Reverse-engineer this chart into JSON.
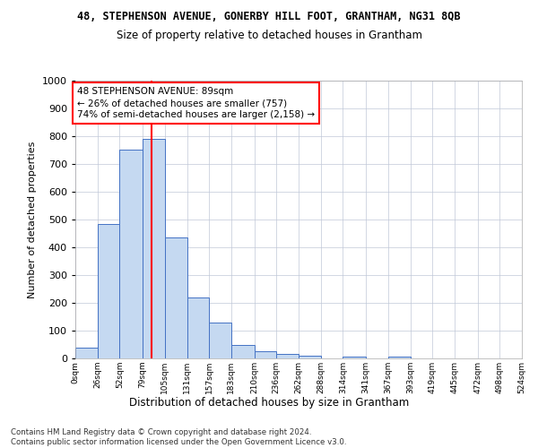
{
  "title": "48, STEPHENSON AVENUE, GONERBY HILL FOOT, GRANTHAM, NG31 8QB",
  "subtitle": "Size of property relative to detached houses in Grantham",
  "xlabel": "Distribution of detached houses by size in Grantham",
  "ylabel": "Number of detached properties",
  "bar_color": "#c5d9f1",
  "bar_edge_color": "#4472c4",
  "grid_color": "#c0c8d8",
  "vline_x": 89,
  "vline_color": "red",
  "annotation_text": "48 STEPHENSON AVENUE: 89sqm\n← 26% of detached houses are smaller (757)\n74% of semi-detached houses are larger (2,158) →",
  "bin_edges": [
    0,
    26,
    52,
    79,
    105,
    131,
    157,
    183,
    210,
    236,
    262,
    288,
    314,
    341,
    367,
    393,
    419,
    445,
    472,
    498,
    524
  ],
  "bin_labels": [
    "0sqm",
    "26sqm",
    "52sqm",
    "79sqm",
    "105sqm",
    "131sqm",
    "157sqm",
    "183sqm",
    "210sqm",
    "236sqm",
    "262sqm",
    "288sqm",
    "314sqm",
    "341sqm",
    "367sqm",
    "393sqm",
    "419sqm",
    "445sqm",
    "472sqm",
    "498sqm",
    "524sqm"
  ],
  "bar_heights": [
    40,
    485,
    750,
    790,
    435,
    220,
    128,
    50,
    27,
    15,
    10,
    0,
    8,
    0,
    8,
    0,
    0,
    0,
    0,
    0
  ],
  "ylim": [
    0,
    1000
  ],
  "yticks": [
    0,
    100,
    200,
    300,
    400,
    500,
    600,
    700,
    800,
    900,
    1000
  ],
  "footer_text": "Contains HM Land Registry data © Crown copyright and database right 2024.\nContains public sector information licensed under the Open Government Licence v3.0.",
  "bg_color": "#ffffff",
  "fig_width": 6.0,
  "fig_height": 5.0
}
